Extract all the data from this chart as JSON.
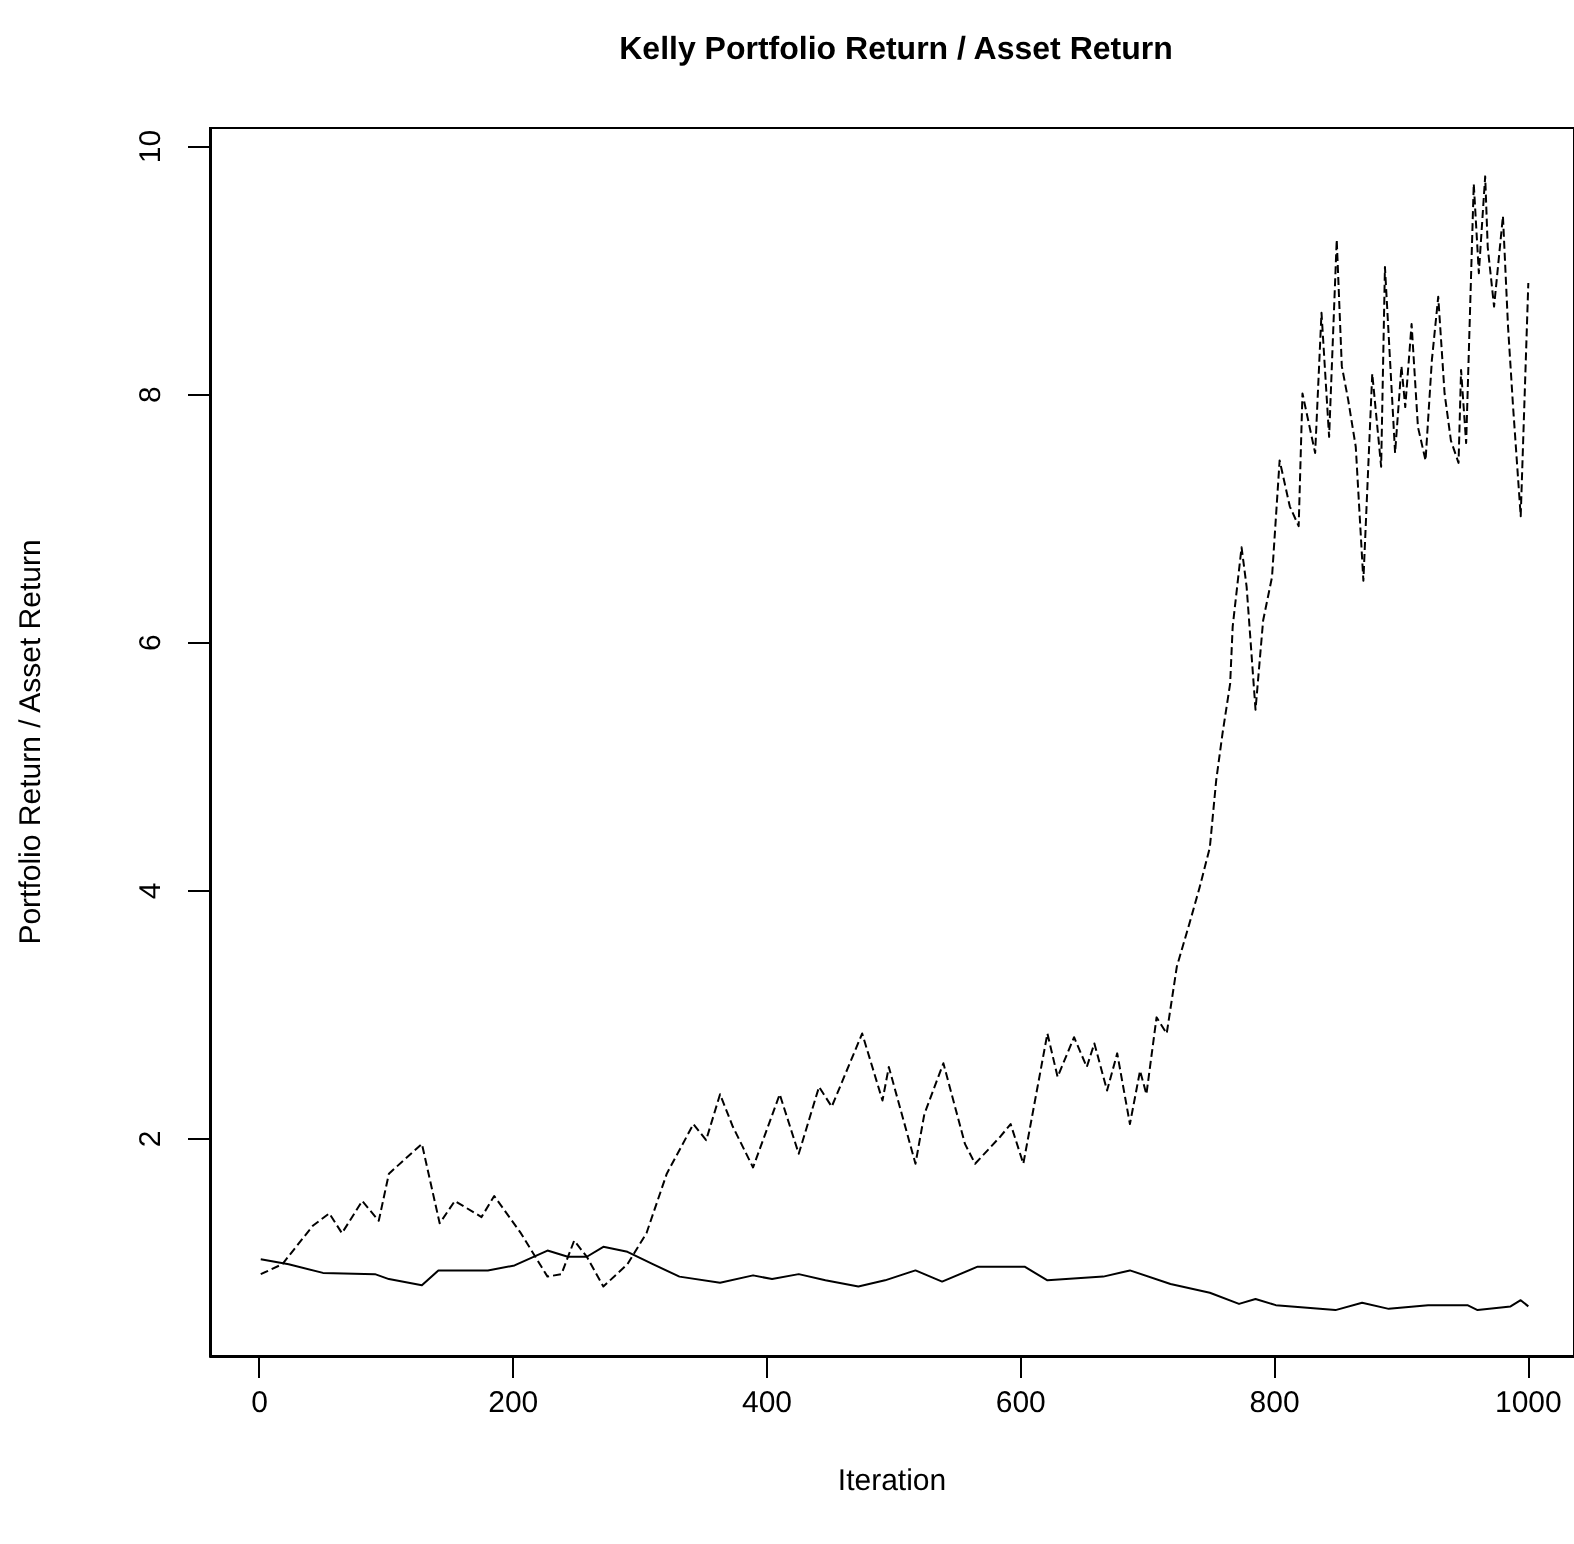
{
  "chart_data": {
    "type": "line",
    "title": "Kelly Portfolio Return / Asset Return",
    "xlabel": "Iteration",
    "ylabel": "Portfolio Return / Asset Return",
    "xlim": [
      -39,
      1036
    ],
    "xticks": [
      0,
      200,
      400,
      600,
      800,
      1000
    ],
    "ylim": [
      0.25,
      10.15
    ],
    "yticks": [
      2,
      4,
      6,
      8,
      10
    ],
    "grid": false,
    "marker": "none",
    "series": [
      {
        "color": "#000000",
        "line_style": "solid",
        "x": [
          1,
          23,
          50,
          91,
          102,
          128,
          141,
          180,
          201,
          227,
          243,
          258,
          271,
          290,
          310,
          331,
          363,
          389,
          404,
          425,
          446,
          472,
          493,
          517,
          538,
          566,
          603,
          621,
          665,
          686,
          718,
          749,
          772,
          785,
          801,
          848,
          869,
          890,
          921,
          952,
          960,
          986,
          994,
          1000
        ],
        "values": [
          1.03,
          0.99,
          0.92,
          0.91,
          0.87,
          0.82,
          0.94,
          0.94,
          0.98,
          1.1,
          1.05,
          1.05,
          1.13,
          1.09,
          0.99,
          0.89,
          0.84,
          0.9,
          0.87,
          0.91,
          0.86,
          0.81,
          0.86,
          0.94,
          0.85,
          0.97,
          0.97,
          0.86,
          0.89,
          0.94,
          0.83,
          0.76,
          0.67,
          0.71,
          0.66,
          0.62,
          0.68,
          0.63,
          0.66,
          0.66,
          0.62,
          0.65,
          0.7,
          0.65
        ]
      },
      {
        "color": "#000000",
        "line_style": "dashed",
        "x": [
          1,
          18,
          42,
          55,
          65,
          81,
          94,
          102,
          128,
          142,
          154,
          175,
          185,
          206,
          227,
          238,
          248,
          258,
          271,
          290,
          305,
          321,
          342,
          352,
          363,
          373,
          389,
          410,
          425,
          441,
          451,
          475,
          491,
          496,
          517,
          524,
          539,
          556,
          564,
          584,
          592,
          602,
          621,
          629,
          642,
          652,
          658,
          668,
          676,
          686,
          694,
          699,
          707,
          715,
          723,
          733,
          741,
          749,
          754,
          759,
          765,
          767,
          774,
          778,
          785,
          791,
          798,
          804,
          812,
          819,
          822,
          832,
          837,
          843,
          849,
          853,
          858,
          864,
          870,
          877,
          884,
          887,
          895,
          900,
          903,
          908,
          913,
          919,
          924,
          929,
          934,
          939,
          945,
          947,
          951,
          957,
          961,
          966,
          968,
          973,
          980,
          984,
          988,
          994,
          1000
        ],
        "values": [
          0.91,
          0.99,
          1.3,
          1.4,
          1.24,
          1.5,
          1.34,
          1.72,
          1.96,
          1.32,
          1.5,
          1.37,
          1.54,
          1.24,
          0.89,
          0.91,
          1.18,
          1.05,
          0.81,
          0.99,
          1.24,
          1.72,
          2.12,
          1.99,
          2.36,
          2.1,
          1.77,
          2.36,
          1.88,
          2.42,
          2.26,
          2.85,
          2.31,
          2.58,
          1.8,
          2.2,
          2.61,
          1.96,
          1.8,
          2.02,
          2.12,
          1.8,
          2.85,
          2.5,
          2.82,
          2.58,
          2.77,
          2.39,
          2.69,
          2.12,
          2.55,
          2.36,
          2.98,
          2.85,
          3.39,
          3.74,
          4.03,
          4.35,
          4.89,
          5.27,
          5.67,
          6.13,
          6.77,
          6.45,
          5.46,
          6.18,
          6.53,
          7.47,
          7.1,
          6.94,
          8.01,
          7.53,
          8.66,
          7.66,
          9.25,
          8.23,
          7.96,
          7.58,
          6.5,
          8.17,
          7.42,
          9.03,
          7.53,
          8.23,
          7.9,
          8.57,
          7.74,
          7.47,
          8.28,
          8.79,
          8.01,
          7.63,
          7.45,
          8.2,
          7.61,
          9.7,
          8.98,
          9.76,
          9.19,
          8.71,
          9.44,
          8.55,
          7.9,
          7.02,
          8.9
        ]
      }
    ]
  }
}
